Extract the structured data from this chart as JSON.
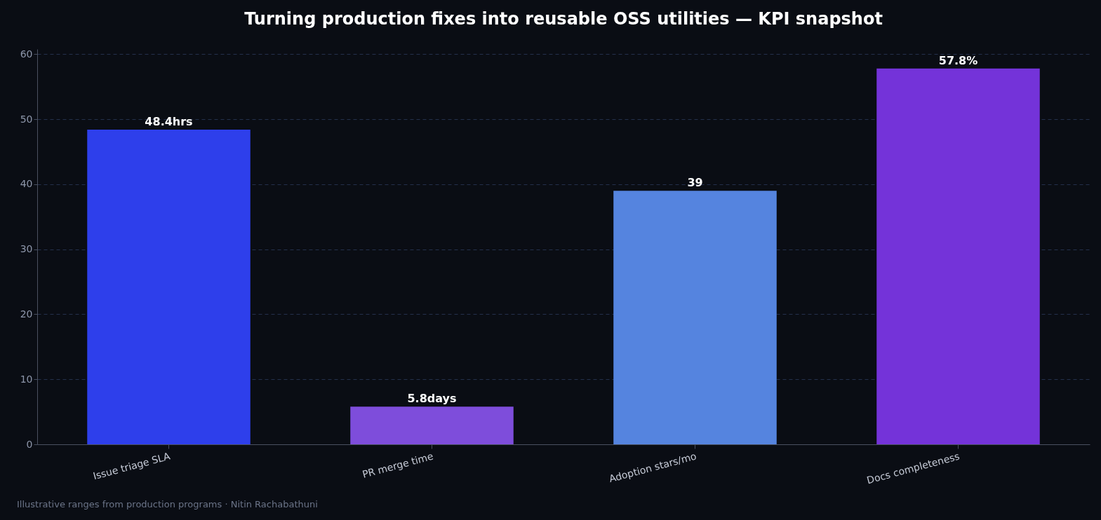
{
  "chart_data": {
    "type": "bar",
    "title": "Turning production fixes into reusable OSS utilities — KPI snapshot",
    "categories": [
      "Issue triage SLA",
      "PR merge time",
      "Adoption stars/mo",
      "Docs completeness"
    ],
    "values": [
      48.4,
      5.8,
      39,
      57.8
    ],
    "colors": [
      "#2e3feb",
      "#7e4ddb",
      "#5584df",
      "#7433d9"
    ],
    "value_labels": [
      "48.4hrs",
      "5.8days",
      "39",
      "57.8%"
    ],
    "ylim": [
      0,
      60.8
    ],
    "yticks": [
      0,
      10,
      20,
      30,
      40,
      50,
      60
    ],
    "grid": "y",
    "annotations": [
      "Illustrative ranges from production programs · Nitin Rachabathuni"
    ]
  }
}
